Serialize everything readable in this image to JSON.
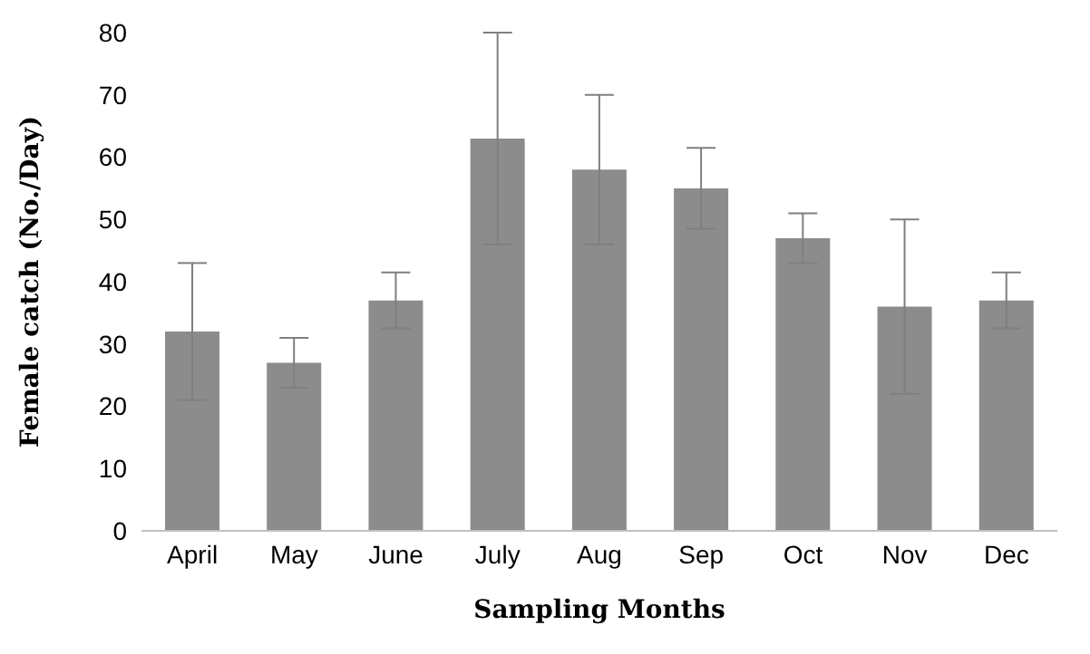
{
  "chart_data": {
    "type": "bar",
    "xlabel": "Sampling Months",
    "ylabel": "Female catch (No./Day)",
    "categories": [
      "April",
      "May",
      "June",
      "July",
      "Aug",
      "Sep",
      "Oct",
      "Nov",
      "Dec"
    ],
    "values": [
      32,
      27,
      37,
      63,
      58,
      55,
      47,
      36,
      37
    ],
    "errors": [
      11,
      4,
      4.5,
      17,
      12,
      6.5,
      4,
      14,
      4.5
    ],
    "color": "#8c8c8c",
    "ylim": [
      0,
      80
    ],
    "yticks": [
      0,
      10,
      20,
      30,
      40,
      50,
      60,
      70,
      80
    ],
    "grid": false,
    "legend": false
  }
}
